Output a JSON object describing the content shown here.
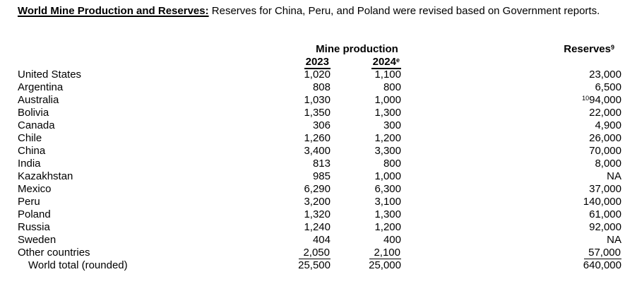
{
  "page": {
    "background_color": "#ffffff",
    "text_color": "#000000"
  },
  "intro": {
    "heading": "World Mine Production and Reserves:",
    "text": "Reserves for China, Peru, and Poland were revised based on Government reports."
  },
  "table": {
    "group_header": "Mine production",
    "columns": {
      "col_2023": {
        "label": "2023"
      },
      "col_2024": {
        "label": "2024",
        "sup": "e"
      },
      "reserves": {
        "label": "Reserves",
        "sup": "9"
      }
    },
    "rows": [
      {
        "country": "United States",
        "prod_2023": "1,020",
        "prod_2024": "1,100",
        "reserves": "23,000"
      },
      {
        "country": "Argentina",
        "prod_2023": "808",
        "prod_2024": "800",
        "reserves": "6,500"
      },
      {
        "country": "Australia",
        "prod_2023": "1,030",
        "prod_2024": "1,000",
        "reserves": "94,000",
        "reserves_sup": "10"
      },
      {
        "country": "Bolivia",
        "prod_2023": "1,350",
        "prod_2024": "1,300",
        "reserves": "22,000"
      },
      {
        "country": "Canada",
        "prod_2023": "306",
        "prod_2024": "300",
        "reserves": "4,900"
      },
      {
        "country": "Chile",
        "prod_2023": "1,260",
        "prod_2024": "1,200",
        "reserves": "26,000"
      },
      {
        "country": "China",
        "prod_2023": "3,400",
        "prod_2024": "3,300",
        "reserves": "70,000"
      },
      {
        "country": "India",
        "prod_2023": "813",
        "prod_2024": "800",
        "reserves": "8,000"
      },
      {
        "country": "Kazakhstan",
        "prod_2023": "985",
        "prod_2024": "1,000",
        "reserves": "NA"
      },
      {
        "country": "Mexico",
        "prod_2023": "6,290",
        "prod_2024": "6,300",
        "reserves": "37,000"
      },
      {
        "country": "Peru",
        "prod_2023": "3,200",
        "prod_2024": "3,100",
        "reserves": "140,000"
      },
      {
        "country": "Poland",
        "prod_2023": "1,320",
        "prod_2024": "1,300",
        "reserves": "61,000"
      },
      {
        "country": "Russia",
        "prod_2023": "1,240",
        "prod_2024": "1,200",
        "reserves": "92,000"
      },
      {
        "country": "Sweden",
        "prod_2023": "404",
        "prod_2024": "400",
        "reserves": "NA"
      },
      {
        "country": "Other countries",
        "prod_2023": "2,050",
        "prod_2024": "2,100",
        "reserves": "57,000",
        "underline": true
      },
      {
        "country": "World total (rounded)",
        "prod_2023": "25,500",
        "prod_2024": "25,000",
        "reserves": "640,000",
        "indent": true
      }
    ]
  }
}
